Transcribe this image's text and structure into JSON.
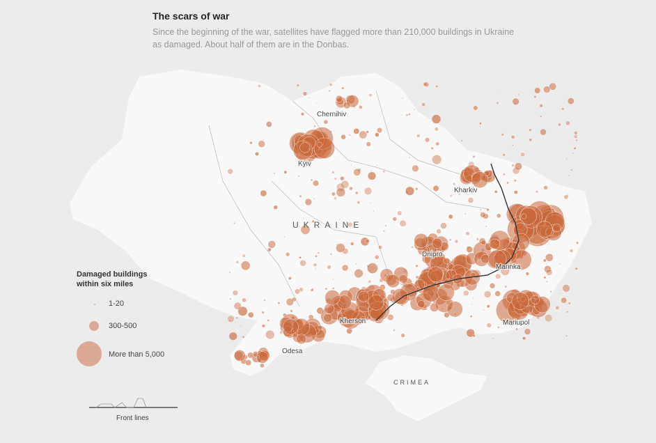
{
  "header": {
    "title": "The scars of war",
    "subtitle": "Since the beginning of the war, satellites have flagged more than 210,000 buildings in Ukraine as damaged. About half of them are in the Donbas."
  },
  "map": {
    "country_label": "UKRAINE",
    "region_label": "CRIMEA",
    "cities": [
      {
        "name": "Chernihiv"
      },
      {
        "name": "Kyiv"
      },
      {
        "name": "Kharkiv"
      },
      {
        "name": "Dnipro"
      },
      {
        "name": "Marinka"
      },
      {
        "name": "Kherson"
      },
      {
        "name": "Mariupol"
      },
      {
        "name": "Odesa"
      }
    ],
    "colors": {
      "land": "#f7f7f7",
      "background": "#ececec",
      "bubble": "#c8683a",
      "legend_bubble": "#dcaa96",
      "front_line": "#333333"
    }
  },
  "legend": {
    "title": "Damaged buildings within six miles",
    "items": [
      {
        "label": "1-20"
      },
      {
        "label": "300-500"
      },
      {
        "label": "More than 5,000"
      }
    ],
    "front_lines_label": "Front lines"
  }
}
